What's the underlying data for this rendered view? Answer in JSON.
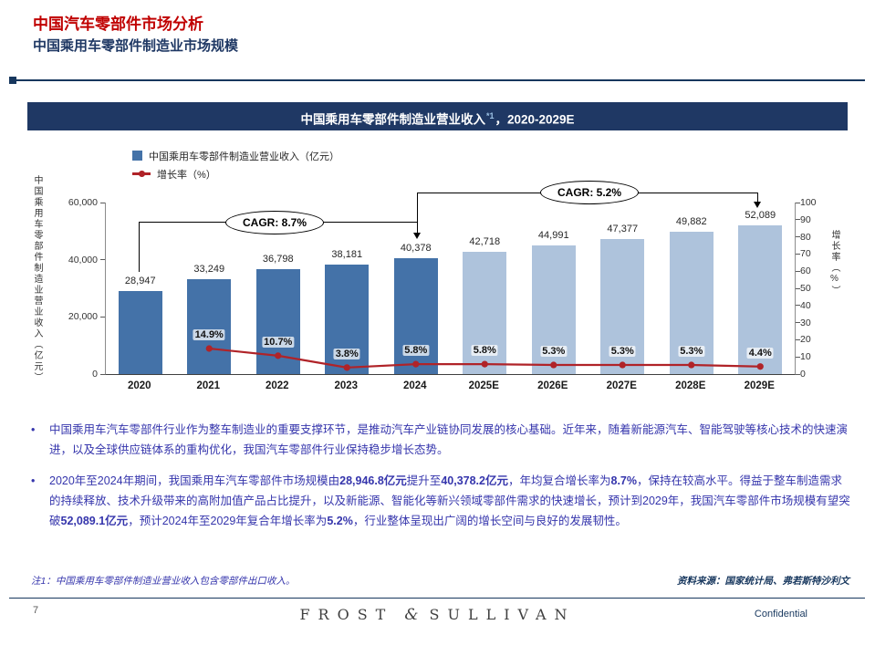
{
  "header": {
    "title": "中国汽车零部件市场分析",
    "subtitle": "中国乘用车零部件制造业市场规模"
  },
  "banner": {
    "main": "中国乘用车零部件制造业营业收入",
    "sup": "*1",
    "suffix": "，2020-2029E"
  },
  "chart_data": {
    "type": "bar",
    "title": "中国乘用车零部件制造业营业收入*1，2020-2029E",
    "categories": [
      "2020",
      "2021",
      "2022",
      "2023",
      "2024",
      "2025E",
      "2026E",
      "2027E",
      "2028E",
      "2029E"
    ],
    "series": [
      {
        "name": "中国乘用车零部件制造业营业收入（亿元）",
        "type": "bar",
        "values": [
          28947,
          33249,
          36798,
          38181,
          40378,
          42718,
          44991,
          47377,
          49882,
          52089
        ],
        "labels": [
          "28,947",
          "33,249",
          "36,798",
          "38,181",
          "40,378",
          "42,718",
          "44,991",
          "47,377",
          "49,882",
          "52,089"
        ]
      },
      {
        "name": "增长率（%）",
        "type": "line",
        "values": [
          null,
          14.9,
          10.7,
          3.8,
          5.8,
          5.8,
          5.3,
          5.3,
          5.3,
          4.4
        ],
        "labels": [
          null,
          "14.9%",
          "10.7%",
          "3.8%",
          "5.8%",
          "5.8%",
          "5.3%",
          "5.3%",
          "5.3%",
          "4.4%"
        ]
      }
    ],
    "forecast_from_index": 5,
    "left_axis": {
      "title": "中国乘用车零部件制造业营业收入（亿元）",
      "max": 60000,
      "ticks": [
        "60,000",
        "40,000",
        "20,000",
        "0"
      ]
    },
    "right_axis": {
      "title": "增长率（%）",
      "max": 100,
      "ticks": [
        "100",
        "90",
        "80",
        "70",
        "60",
        "50",
        "40",
        "30",
        "20",
        "10",
        "0"
      ]
    },
    "annotations": [
      {
        "label": "CAGR: 8.7%",
        "span": "2020-2024"
      },
      {
        "label": "CAGR: 5.2%",
        "span": "2024-2029E"
      }
    ],
    "colors": {
      "bar_actual": "#4472A8",
      "bar_forecast": "#AEC3DC",
      "line": "#B02328"
    },
    "legend_position": "top-left",
    "grid": false
  },
  "bullets": [
    [
      {
        "t": "中国乘用车汽车零部件行业作为整车制造业的重要支撑环节，是推动汽车产业链协同发展的核心基础。近年来，随着新能源汽车、智能驾驶等核心技术的快速演进，以及全球供应链体系的重构优化，我国汽车零部件行业保持稳步增长态势。"
      }
    ],
    [
      {
        "t": "2020年至2024年期间，我国乘用车汽车零部件市场规模由"
      },
      {
        "t": "28,946.8亿元",
        "b": true
      },
      {
        "t": "提升至"
      },
      {
        "t": "40,378.2亿元",
        "b": true
      },
      {
        "t": "，年均复合增长率为"
      },
      {
        "t": "8.7%",
        "b": true
      },
      {
        "t": "，保持在较高水平。得益于整车制造需求的持续释放、技术升级带来的高附加值产品占比提升，以及新能源、智能化等新兴领域零部件需求的快速增长，预计到2029年，我国汽车零部件市场规模有望突破"
      },
      {
        "t": "52,089.1亿元",
        "b": true
      },
      {
        "t": "，预计2024年至2029年复合年增长率为"
      },
      {
        "t": "5.2%",
        "b": true
      },
      {
        "t": "，行业整体呈现出广阔的增长空间与良好的发展韧性。"
      }
    ]
  ],
  "notes": {
    "footnote": "注1：中国乘用车零部件制造业营业收入包含零部件出口收入。",
    "source": "资料来源：国家统计局、弗若斯特沙利文"
  },
  "footer": {
    "page_number": "7",
    "logo_left": "FROST",
    "logo_amp": "&",
    "logo_right": "SULLIVAN",
    "confidential": "Confidential"
  }
}
